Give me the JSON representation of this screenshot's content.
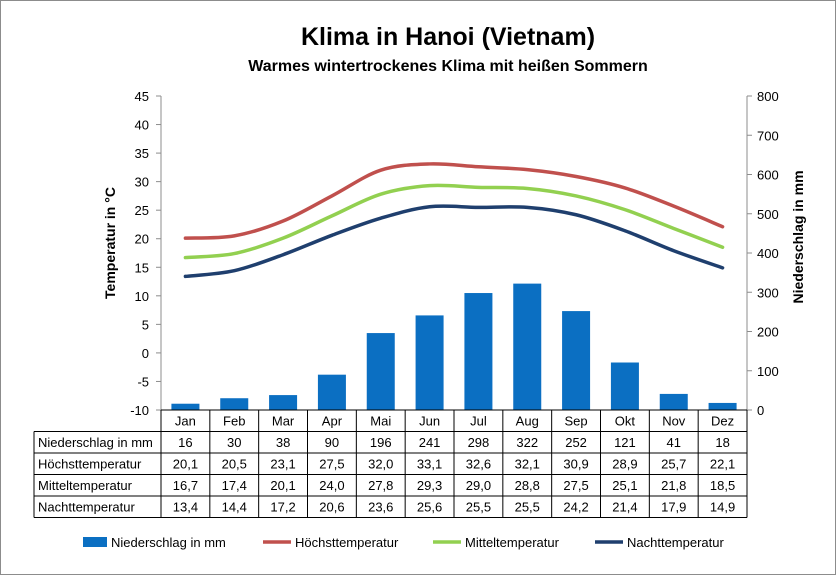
{
  "colors": {
    "precip": "#0b6fc2",
    "max": "#c0504d",
    "mean": "#92d050",
    "night": "#1f3f6e"
  },
  "chart_data": {
    "type": "bar",
    "title": "Klima in Hanoi (Vietnam)",
    "subtitle": "Warmes wintertrockenes Klima mit heißen Sommern",
    "ylabel_left": "Temperatur in °C",
    "ylabel_right": "Niederschlag in mm",
    "ylim_left": [
      -10,
      45
    ],
    "ylim_right": [
      0,
      800
    ],
    "yticks_left": [
      "45",
      "40",
      "35",
      "30",
      "25",
      "20",
      "15",
      "10",
      "5",
      "0",
      "-5",
      "-10"
    ],
    "yticks_right": [
      "800",
      "700",
      "600",
      "500",
      "400",
      "300",
      "200",
      "100",
      "0"
    ],
    "grid": false,
    "legend_position": "bottom",
    "categories": [
      "Jan",
      "Feb",
      "Mar",
      "Apr",
      "Mai",
      "Jun",
      "Jul",
      "Aug",
      "Sep",
      "Okt",
      "Nov",
      "Dez"
    ],
    "series": [
      {
        "name": "Niederschlag in mm",
        "type": "bar",
        "axis": "right",
        "color_key": "precip",
        "values": [
          16,
          30,
          38,
          90,
          196,
          241,
          298,
          322,
          252,
          121,
          41,
          18
        ],
        "labels": [
          "16",
          "30",
          "38",
          "90",
          "196",
          "241",
          "298",
          "322",
          "252",
          "121",
          "41",
          "18"
        ]
      },
      {
        "name": "Höchsttemperatur",
        "type": "line",
        "axis": "left",
        "color_key": "max",
        "values": [
          20.1,
          20.5,
          23.1,
          27.5,
          32.0,
          33.1,
          32.6,
          32.1,
          30.9,
          28.9,
          25.7,
          22.1
        ],
        "labels": [
          "20,1",
          "20,5",
          "23,1",
          "27,5",
          "32,0",
          "33,1",
          "32,6",
          "32,1",
          "30,9",
          "28,9",
          "25,7",
          "22,1"
        ]
      },
      {
        "name": "Mitteltemperatur",
        "type": "line",
        "axis": "left",
        "color_key": "mean",
        "values": [
          16.7,
          17.4,
          20.1,
          24.0,
          27.8,
          29.3,
          29.0,
          28.8,
          27.5,
          25.1,
          21.8,
          18.5
        ],
        "labels": [
          "16,7",
          "17,4",
          "20,1",
          "24,0",
          "27,8",
          "29,3",
          "29,0",
          "28,8",
          "27,5",
          "25,1",
          "21,8",
          "18,5"
        ]
      },
      {
        "name": "Nachttemperatur",
        "type": "line",
        "axis": "left",
        "color_key": "night",
        "values": [
          13.4,
          14.4,
          17.2,
          20.6,
          23.6,
          25.6,
          25.5,
          25.5,
          24.2,
          21.4,
          17.9,
          14.9
        ],
        "labels": [
          "13,4",
          "14,4",
          "17,2",
          "20,6",
          "23,6",
          "25,6",
          "25,5",
          "25,5",
          "24,2",
          "21,4",
          "17,9",
          "14,9"
        ]
      }
    ]
  }
}
